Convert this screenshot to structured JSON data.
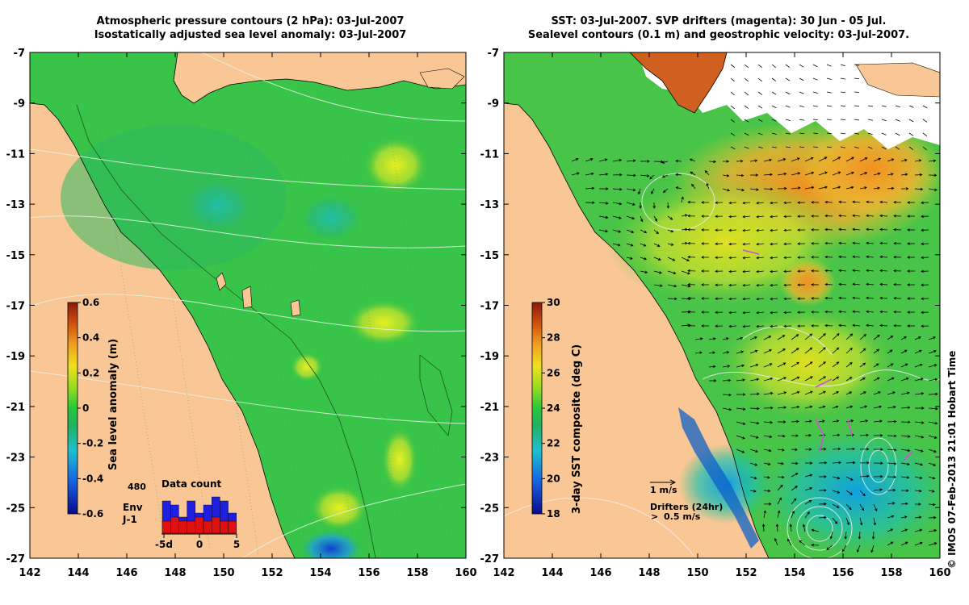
{
  "left_panel": {
    "title_line1": "Atmospheric pressure contours (2 hPa): 03-Jul-2007",
    "title_line2": "Isostatically adjusted sea level anomaly: 03-Jul-2007",
    "colorbar": {
      "label": "Sea level anomaly (m)",
      "ticks": [
        "0.6",
        "0.4",
        "0.2",
        "0",
        "-0.2",
        "-0.4",
        "-0.6"
      ],
      "range": [
        -0.6,
        0.6
      ]
    },
    "data_count": {
      "title": "Data count",
      "max_label": "480",
      "legend": [
        {
          "name": "Env",
          "color": "#1f1fe0"
        },
        {
          "name": "J-1",
          "color": "#e01010"
        }
      ],
      "x_ticks": [
        "-5d",
        "0",
        "5"
      ],
      "env_counts": [
        8,
        7,
        4,
        8,
        5,
        7,
        9,
        8,
        5
      ],
      "j1_counts": [
        3,
        4,
        3,
        3,
        4,
        3,
        4,
        3,
        3
      ]
    }
  },
  "right_panel": {
    "title_line1": "SST: 03-Jul-2007. SVP drifters (magenta): 30 Jun - 05 Jul.",
    "title_line2": "Sealevel contours (0.1 m) and geostrophic velocity: 03-Jul-2007.",
    "colorbar": {
      "label": "3-day SST composite (deg C)",
      "ticks": [
        "30",
        "28",
        "26",
        "24",
        "22",
        "20",
        "18"
      ],
      "range": [
        18,
        30
      ]
    },
    "scale_label": "1 m/s",
    "drifter_title": "Drifters (24hr)",
    "drifter_symbol": ">",
    "drifter_scale": "0.5 m/s"
  },
  "axes": {
    "y_ticks": [
      "-7",
      "-9",
      "-11",
      "-13",
      "-15",
      "-17",
      "-19",
      "-21",
      "-23",
      "-25",
      "-27"
    ],
    "x_ticks": [
      "142",
      "144",
      "146",
      "148",
      "150",
      "152",
      "154",
      "156",
      "158",
      "160"
    ],
    "lon_range": [
      142,
      160
    ],
    "lat_range": [
      -27,
      -7
    ]
  },
  "copyright": "© IMOS 07-Feb-2013 21:01 Hobart Time",
  "colors": {
    "land": "#f9c795",
    "sea_green": "#2fc14a",
    "drifter": "#d24fd2"
  }
}
